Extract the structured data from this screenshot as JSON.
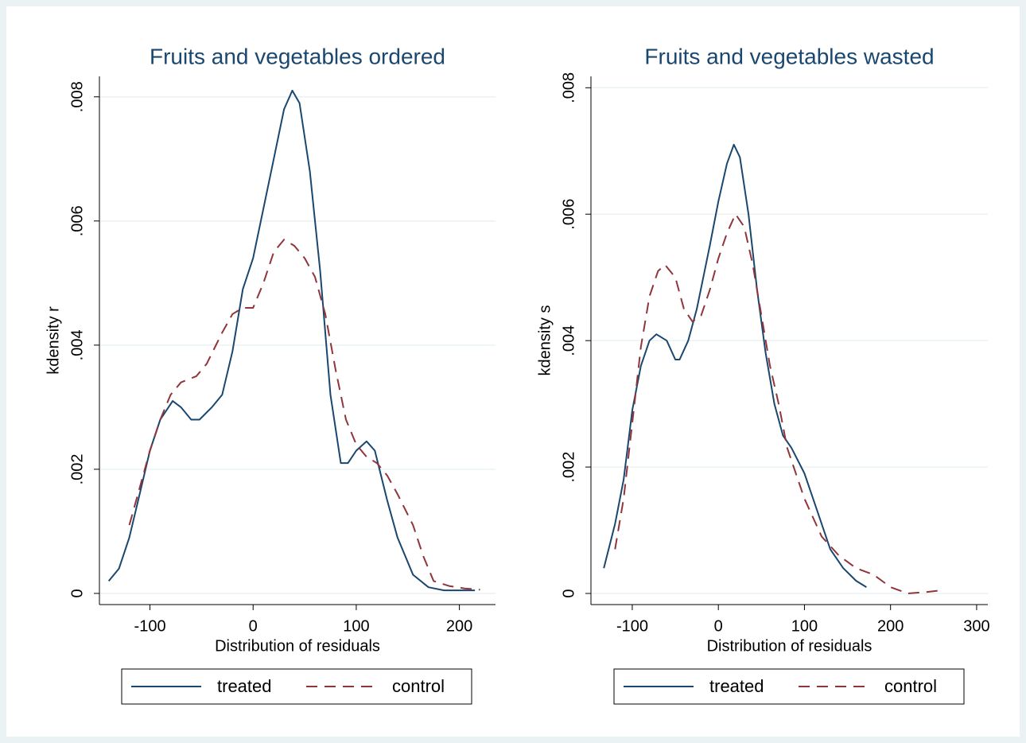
{
  "chart_data": [
    {
      "type": "line",
      "title": "Fruits and vegetables ordered",
      "xlabel": "Distribution of residuals",
      "ylabel": "kdensity r",
      "xlim": [
        -149,
        235
      ],
      "ylim": [
        -0.00018,
        0.00833
      ],
      "xticks": [
        -100,
        0,
        100,
        200
      ],
      "yticks": [
        0,
        {
          "value": 0.002,
          "label": ".002"
        },
        {
          "value": 0.004,
          "label": ".004"
        },
        {
          "value": 0.006,
          "label": ".006"
        },
        {
          "value": 0.008,
          "label": ".008"
        }
      ],
      "grid": true,
      "legend": "bottom",
      "series": [
        {
          "name": "treated",
          "color": "#1a476f",
          "dash": "solid",
          "x": [
            -140,
            -130,
            -120,
            -110,
            -100,
            -90,
            -78,
            -70,
            -60,
            -52,
            -40,
            -30,
            -20,
            -10,
            0,
            10,
            20,
            30,
            38,
            45,
            55,
            65,
            75,
            85,
            92,
            100,
            110,
            118,
            130,
            140,
            155,
            170,
            185,
            200,
            215
          ],
          "values": [
            0.0002,
            0.0004,
            0.0009,
            0.0016,
            0.0023,
            0.0028,
            0.0031,
            0.003,
            0.0028,
            0.0028,
            0.003,
            0.0032,
            0.0039,
            0.0049,
            0.0054,
            0.0062,
            0.007,
            0.0078,
            0.0081,
            0.0079,
            0.0068,
            0.0052,
            0.0032,
            0.0021,
            0.0021,
            0.0023,
            0.00245,
            0.0023,
            0.0015,
            0.0009,
            0.0003,
            0.0001,
            5e-05,
            5e-05,
            5e-05
          ]
        },
        {
          "name": "control",
          "color": "#90353b",
          "dash": "dashed",
          "x": [
            -120,
            -110,
            -100,
            -90,
            -80,
            -70,
            -55,
            -45,
            -30,
            -20,
            -10,
            0,
            10,
            20,
            30,
            40,
            50,
            60,
            70,
            80,
            90,
            100,
            110,
            120,
            130,
            140,
            155,
            165,
            175,
            190,
            205,
            220
          ],
          "values": [
            0.0011,
            0.0017,
            0.0023,
            0.0028,
            0.0032,
            0.0034,
            0.0035,
            0.0037,
            0.0042,
            0.0045,
            0.0046,
            0.0046,
            0.005,
            0.0055,
            0.0057,
            0.0056,
            0.0054,
            0.0051,
            0.0045,
            0.0036,
            0.0028,
            0.0024,
            0.0022,
            0.0021,
            0.0019,
            0.0016,
            0.0011,
            0.0006,
            0.0002,
            0.00012,
            8e-05,
            6e-05
          ]
        }
      ]
    },
    {
      "type": "line",
      "title": "Fruits and vegetables wasted",
      "xlabel": "Distribution of residuals",
      "ylabel": "kdensity s",
      "xlim": [
        -148,
        313
      ],
      "ylim": [
        -0.000176,
        0.00818
      ],
      "xticks": [
        -100,
        0,
        100,
        200,
        300
      ],
      "yticks": [
        0,
        {
          "value": 0.002,
          "label": ".002"
        },
        {
          "value": 0.004,
          "label": ".004"
        },
        {
          "value": 0.006,
          "label": ".006"
        },
        {
          "value": 0.008,
          "label": ".008"
        }
      ],
      "grid": true,
      "legend": "bottom",
      "series": [
        {
          "name": "treated",
          "color": "#1a476f",
          "dash": "solid",
          "x": [
            -133,
            -120,
            -110,
            -100,
            -90,
            -80,
            -72,
            -60,
            -50,
            -45,
            -35,
            -25,
            -10,
            0,
            10,
            18,
            25,
            35,
            45,
            55,
            65,
            75,
            85,
            100,
            115,
            130,
            145,
            160,
            172
          ],
          "values": [
            0.0004,
            0.0011,
            0.0018,
            0.0029,
            0.0036,
            0.004,
            0.0041,
            0.004,
            0.0037,
            0.0037,
            0.004,
            0.0045,
            0.0055,
            0.0062,
            0.0068,
            0.0071,
            0.0069,
            0.006,
            0.0048,
            0.0038,
            0.003,
            0.0025,
            0.0023,
            0.0019,
            0.0013,
            0.0007,
            0.0004,
            0.0002,
            0.0001
          ]
        },
        {
          "name": "control",
          "color": "#90353b",
          "dash": "dashed",
          "x": [
            -120,
            -110,
            -100,
            -90,
            -80,
            -70,
            -62,
            -50,
            -40,
            -30,
            -20,
            -10,
            0,
            10,
            20,
            30,
            40,
            50,
            60,
            70,
            80,
            100,
            120,
            140,
            160,
            180,
            200,
            220,
            240,
            260
          ],
          "values": [
            0.0007,
            0.0015,
            0.0027,
            0.0039,
            0.0047,
            0.0051,
            0.0052,
            0.005,
            0.0045,
            0.0043,
            0.0044,
            0.0048,
            0.0053,
            0.0057,
            0.006,
            0.0058,
            0.0052,
            0.0044,
            0.0036,
            0.003,
            0.0023,
            0.0015,
            0.0009,
            0.0006,
            0.0004,
            0.0003,
            0.0001,
            0,
            2e-05,
            5e-05
          ]
        }
      ]
    }
  ]
}
